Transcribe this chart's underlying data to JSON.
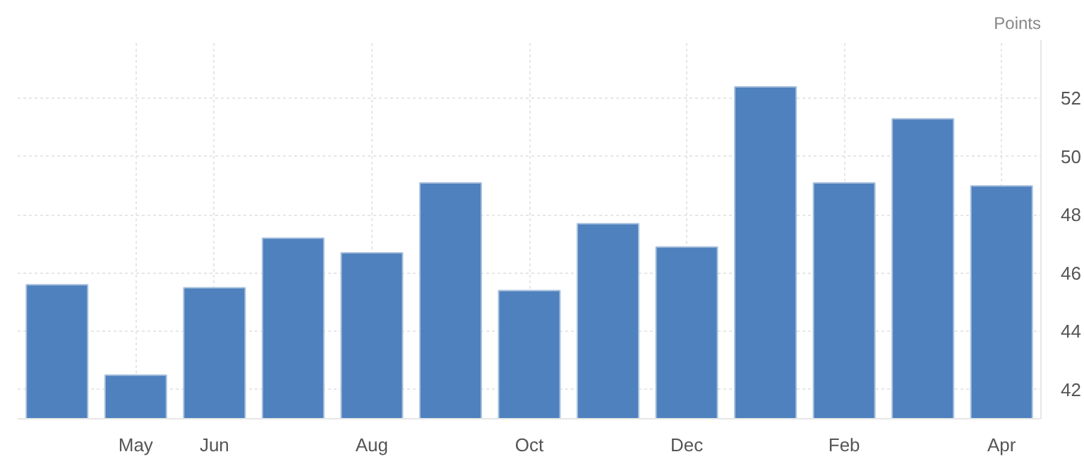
{
  "chart_data": {
    "type": "bar",
    "ylabel": "Points",
    "categories": [
      null,
      "May",
      "Jun",
      null,
      "Aug",
      null,
      "Oct",
      null,
      "Dec",
      null,
      "Feb",
      null,
      "Apr"
    ],
    "values": [
      45.6,
      42.5,
      45.5,
      47.2,
      46.7,
      49.1,
      45.4,
      47.7,
      46.9,
      52.4,
      49.1,
      51.3,
      49.0
    ],
    "color": "#4e81bd",
    "ylim": [
      41,
      54
    ],
    "yticks": [
      42,
      44,
      46,
      48,
      50,
      52
    ],
    "grid": true
  }
}
